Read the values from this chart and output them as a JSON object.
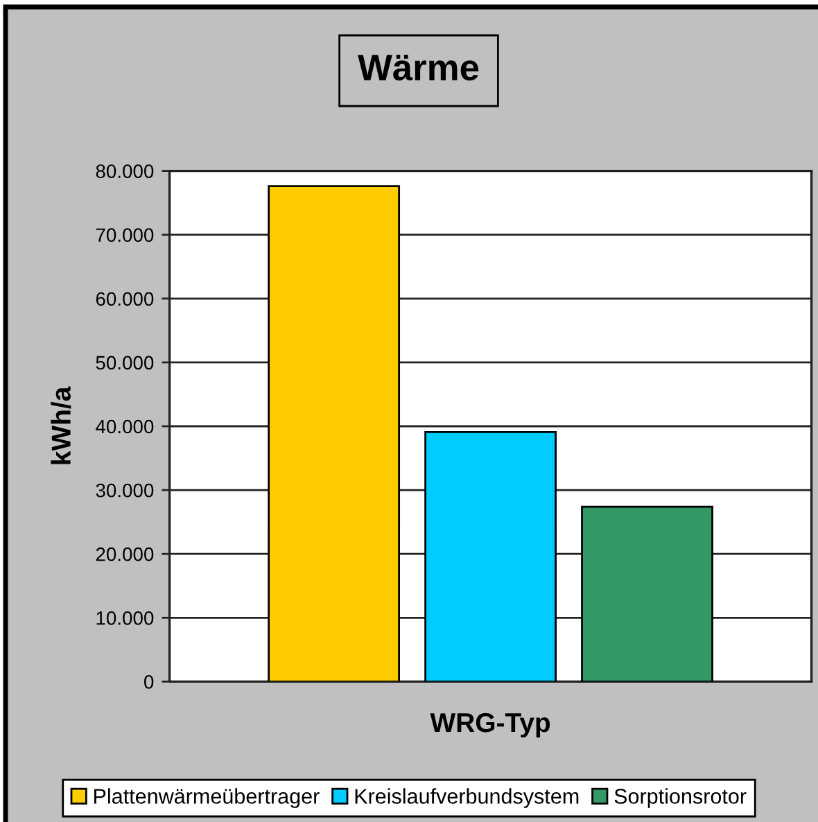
{
  "chart_data": {
    "type": "bar",
    "title": "Wärme",
    "xlabel": "WRG-Typ",
    "ylabel": "kWh/a",
    "categories": [
      null
    ],
    "series": [
      {
        "name": "Plattenwärmeübertrager",
        "color": "#ffcc00",
        "values": [
          77600
        ]
      },
      {
        "name": "Kreislaufverbundsystem",
        "color": "#00ccff",
        "values": [
          39100
        ]
      },
      {
        "name": "Sorptionsrotor",
        "color": "#339966",
        "values": [
          27400
        ]
      }
    ],
    "ylim": [
      0,
      80000
    ],
    "yticks": [
      0,
      {
        "value": 10000,
        "label": "10.000"
      },
      {
        "value": 20000,
        "label": "20.000"
      },
      {
        "value": 30000,
        "label": "30.000"
      },
      {
        "value": 40000,
        "label": "40.000"
      },
      {
        "value": 50000,
        "label": "50.000"
      },
      {
        "value": 60000,
        "label": "60.000"
      },
      {
        "value": 70000,
        "label": "70.000"
      },
      {
        "value": 80000,
        "label": "80.000"
      }
    ],
    "grid": "y",
    "legend": "bottom",
    "tick_labels": "y"
  }
}
